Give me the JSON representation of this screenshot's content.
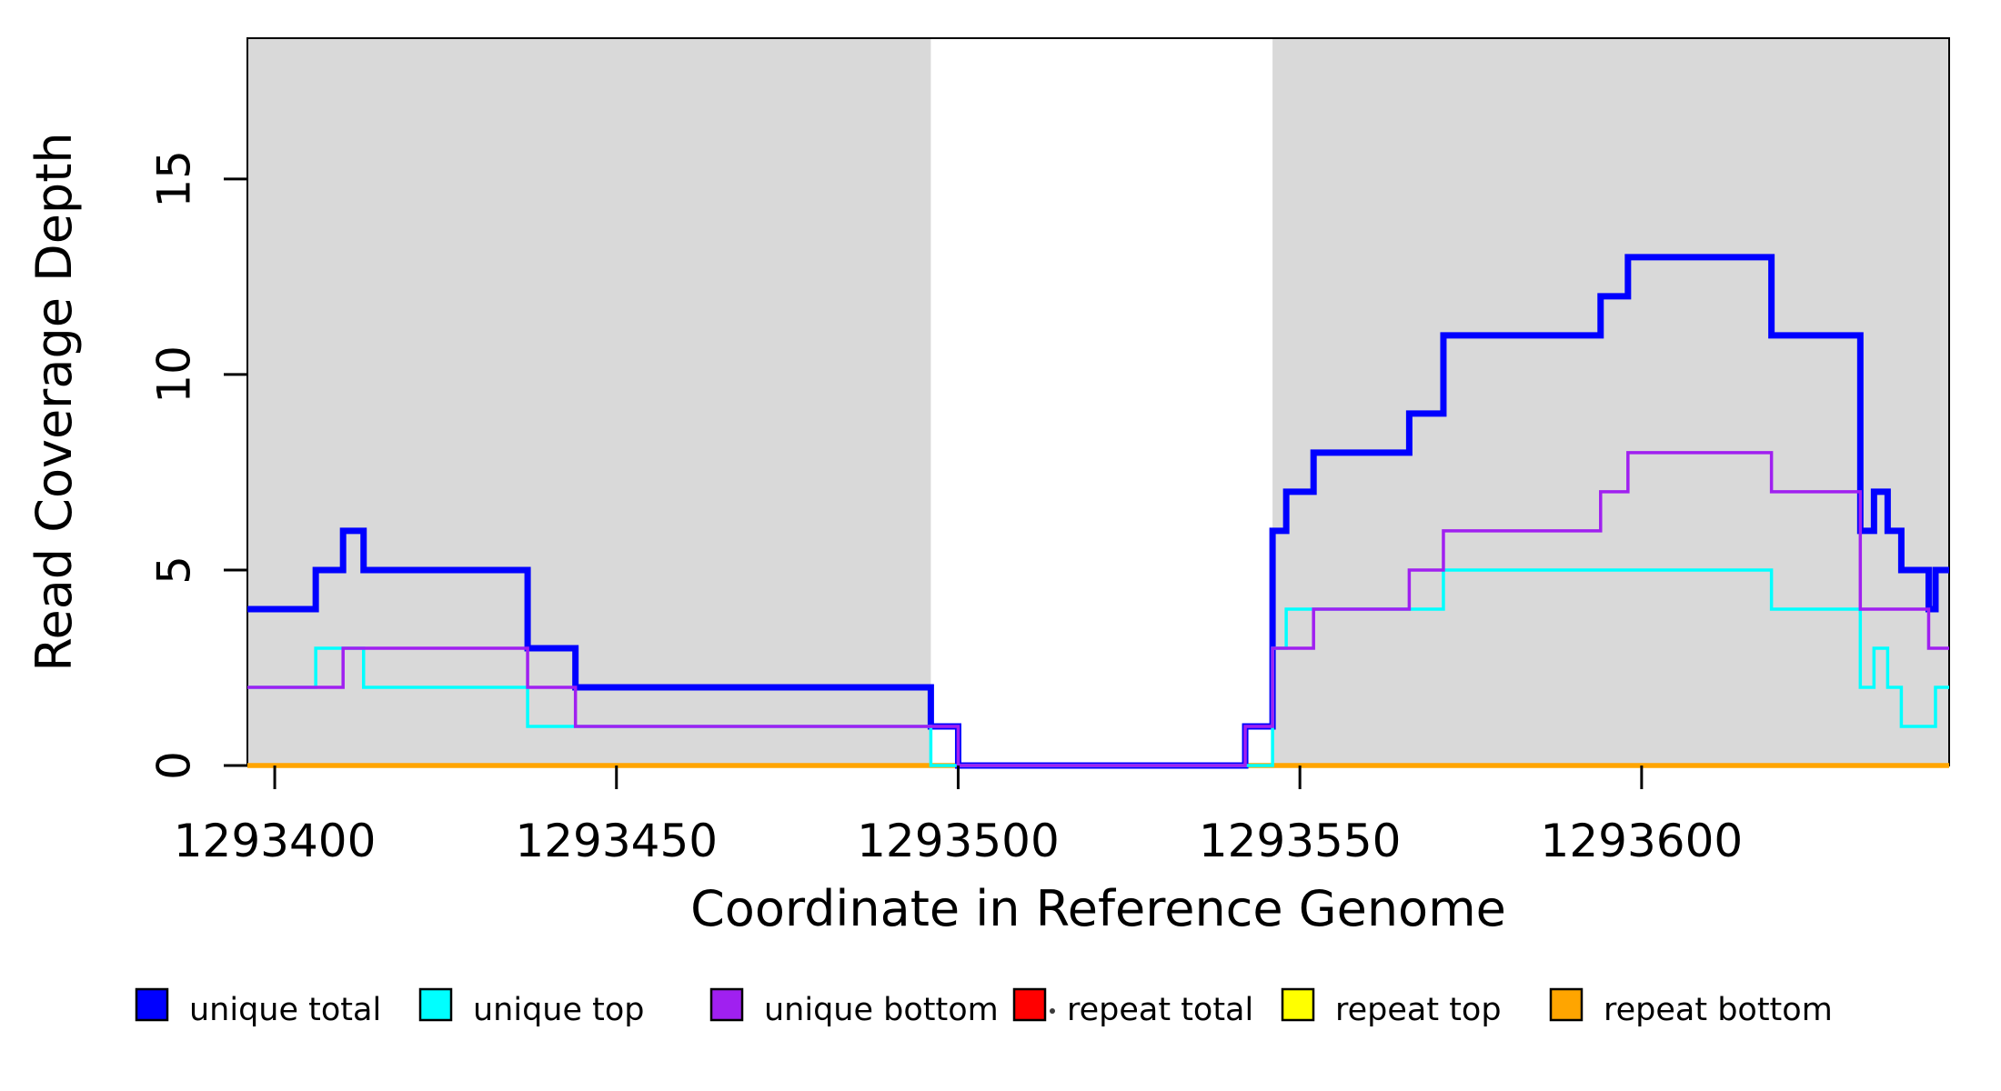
{
  "chart_data": {
    "type": "line",
    "subtype": "step-post",
    "title": "",
    "xlabel": "Coordinate in Reference Genome",
    "ylabel": "Read Coverage Depth",
    "xlim": [
      1293396,
      1293645
    ],
    "ylim": [
      0,
      18.6
    ],
    "grid": false,
    "x_ticks": [
      1293400,
      1293450,
      1293500,
      1293550,
      1293600
    ],
    "y_ticks": [
      0,
      5,
      10,
      15
    ],
    "shaded_regions": [
      {
        "x0": 1293396,
        "x1": 1293496,
        "color": "#d9d9d9"
      },
      {
        "x0": 1293546,
        "x1": 1293645,
        "color": "#d9d9d9"
      }
    ],
    "series": [
      {
        "name": "repeat total",
        "color": "#ff0000",
        "width": 3,
        "points": [
          [
            1293396,
            0
          ]
        ]
      },
      {
        "name": "repeat top",
        "color": "#ffff00",
        "width": 3,
        "points": [
          [
            1293396,
            0
          ]
        ]
      },
      {
        "name": "repeat bottom",
        "color": "#ffa500",
        "width": 5.5,
        "points": [
          [
            1293396,
            0
          ]
        ]
      },
      {
        "name": "unique total",
        "color": "#0000ff",
        "width": 7,
        "points": [
          [
            1293396,
            4
          ],
          [
            1293406,
            5
          ],
          [
            1293410,
            6
          ],
          [
            1293413,
            5
          ],
          [
            1293437,
            3
          ],
          [
            1293444,
            2
          ],
          [
            1293496,
            1
          ],
          [
            1293500,
            0
          ],
          [
            1293542,
            1
          ],
          [
            1293546,
            6
          ],
          [
            1293548,
            7
          ],
          [
            1293552,
            8
          ],
          [
            1293566,
            9
          ],
          [
            1293571,
            11
          ],
          [
            1293594,
            12
          ],
          [
            1293598,
            13
          ],
          [
            1293619,
            11
          ],
          [
            1293632,
            6
          ],
          [
            1293634,
            7
          ],
          [
            1293636,
            6
          ],
          [
            1293638,
            5
          ],
          [
            1293642,
            4
          ],
          [
            1293643,
            5
          ]
        ]
      },
      {
        "name": "unique top",
        "color": "#00ffff",
        "width": 3.5,
        "points": [
          [
            1293396,
            2
          ],
          [
            1293406,
            3
          ],
          [
            1293413,
            2
          ],
          [
            1293437,
            1
          ],
          [
            1293496,
            0
          ],
          [
            1293546,
            3
          ],
          [
            1293548,
            4
          ],
          [
            1293571,
            5
          ],
          [
            1293619,
            4
          ],
          [
            1293632,
            2
          ],
          [
            1293634,
            3
          ],
          [
            1293636,
            2
          ],
          [
            1293638,
            1
          ],
          [
            1293643,
            2
          ]
        ]
      },
      {
        "name": "unique bottom",
        "color": "#a020f0",
        "width": 3.5,
        "points": [
          [
            1293396,
            2
          ],
          [
            1293410,
            3
          ],
          [
            1293437,
            2
          ],
          [
            1293444,
            1
          ],
          [
            1293500,
            0
          ],
          [
            1293542,
            1
          ],
          [
            1293546,
            3
          ],
          [
            1293552,
            4
          ],
          [
            1293566,
            5
          ],
          [
            1293571,
            6
          ],
          [
            1293594,
            7
          ],
          [
            1293598,
            8
          ],
          [
            1293619,
            7
          ],
          [
            1293632,
            4
          ],
          [
            1293642,
            3
          ]
        ]
      }
    ],
    "legend": {
      "position": "bottom",
      "items": [
        {
          "label": "unique total",
          "color": "#0000ff"
        },
        {
          "label": "unique top",
          "color": "#00ffff"
        },
        {
          "label": "unique bottom",
          "color": "#a020f0"
        },
        {
          "label": "repeat total",
          "color": "#ff0000"
        },
        {
          "label": "repeat top",
          "color": "#ffff00"
        },
        {
          "label": "repeat bottom",
          "color": "#ffa500"
        }
      ]
    },
    "annotations": [
      {
        "type": "dot",
        "note": "small stray mark left of repeat-total legend swatch"
      }
    ]
  }
}
